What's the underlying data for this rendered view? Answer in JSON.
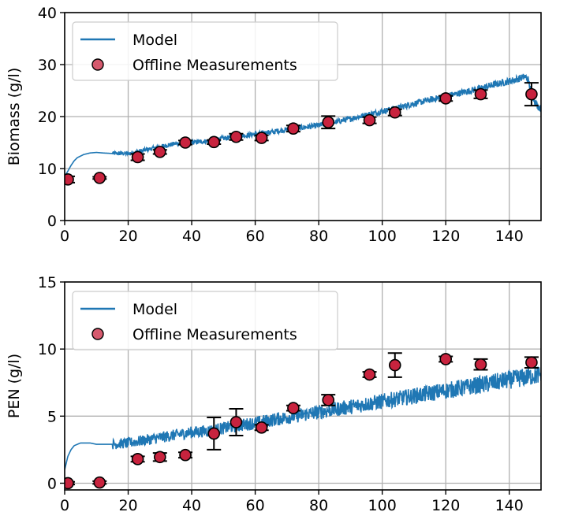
{
  "chart_data": [
    {
      "type": "line",
      "xlabel": "",
      "ylabel": "Biomass (g/l)",
      "xlim": [
        0,
        150
      ],
      "ylim": [
        0,
        40
      ],
      "xticks": [
        "0",
        "20",
        "40",
        "60",
        "80",
        "100",
        "120",
        "140"
      ],
      "yticks": [
        "0",
        "10",
        "20",
        "30",
        "40"
      ],
      "grid": true,
      "legend_position": "top-left",
      "legend": [
        "Model",
        "Offline Measurements"
      ],
      "series": [
        {
          "name": "Model",
          "kind": "line",
          "color": "#1f77b4",
          "x": [
            0,
            1,
            2,
            3,
            4,
            6,
            8,
            10,
            12,
            15,
            20,
            25,
            30,
            35,
            40,
            45,
            50,
            55,
            60,
            65,
            70,
            75,
            80,
            85,
            90,
            95,
            100,
            105,
            110,
            115,
            120,
            125,
            130,
            135,
            140,
            143,
            145,
            146,
            147,
            148,
            149,
            150
          ],
          "y": [
            8.5,
            9.5,
            10.6,
            11.5,
            12.1,
            12.7,
            13.0,
            13.1,
            13.0,
            12.9,
            12.9,
            13.5,
            14.2,
            14.8,
            15.0,
            15.3,
            15.8,
            16.2,
            16.6,
            17.0,
            17.5,
            17.9,
            18.3,
            18.9,
            19.6,
            20.3,
            21.0,
            21.7,
            22.5,
            23.2,
            23.9,
            24.6,
            25.3,
            26.1,
            26.8,
            27.3,
            27.7,
            27.0,
            24.5,
            23.0,
            22.0,
            21.5
          ],
          "noise": 0.35
        },
        {
          "name": "Offline Measurements",
          "kind": "scatter",
          "color": "#c8233e",
          "x": [
            1,
            11,
            23,
            30,
            38,
            47,
            54,
            62,
            72,
            83,
            96,
            104,
            120,
            131,
            147
          ],
          "y": [
            7.9,
            8.2,
            12.2,
            13.2,
            15.0,
            15.1,
            16.1,
            15.9,
            17.7,
            18.9,
            19.3,
            20.8,
            23.5,
            24.3,
            24.3
          ],
          "err": [
            0.6,
            0.2,
            0.6,
            0.4,
            0.4,
            0.4,
            0.6,
            0.5,
            0.6,
            1.2,
            0.6,
            0.6,
            0.5,
            0.8,
            2.2
          ]
        }
      ]
    },
    {
      "type": "line",
      "xlabel": "",
      "ylabel": "PEN (g/l)",
      "xlim": [
        0,
        150
      ],
      "ylim": [
        -0.5,
        15
      ],
      "xticks": [
        "0",
        "20",
        "40",
        "60",
        "80",
        "100",
        "120",
        "140"
      ],
      "yticks": [
        "0",
        "5",
        "10",
        "15"
      ],
      "grid": true,
      "legend_position": "top-left",
      "legend": [
        "Model",
        "Offline Measurements"
      ],
      "series": [
        {
          "name": "Model",
          "kind": "line",
          "color": "#1f77b4",
          "x": [
            0,
            1,
            2,
            3,
            5,
            8,
            10,
            15,
            20,
            25,
            30,
            35,
            40,
            45,
            50,
            55,
            60,
            65,
            70,
            75,
            80,
            85,
            90,
            95,
            100,
            105,
            110,
            115,
            120,
            125,
            130,
            135,
            140,
            145,
            150
          ],
          "y": [
            1.0,
            2.0,
            2.5,
            2.8,
            3.0,
            3.0,
            2.9,
            2.9,
            3.0,
            3.2,
            3.4,
            3.6,
            3.8,
            3.9,
            4.1,
            4.3,
            4.5,
            4.7,
            4.9,
            5.1,
            5.3,
            5.5,
            5.7,
            5.9,
            6.1,
            6.3,
            6.5,
            6.7,
            6.9,
            7.1,
            7.3,
            7.5,
            7.7,
            7.9,
            8.1
          ],
          "noise": 0.35
        },
        {
          "name": "Offline Measurements",
          "kind": "scatter",
          "color": "#c8233e",
          "x": [
            1,
            11,
            23,
            30,
            38,
            47,
            54,
            62,
            72,
            83,
            96,
            104,
            120,
            131,
            147
          ],
          "y": [
            0.0,
            0.05,
            1.8,
            1.95,
            2.1,
            3.7,
            4.55,
            4.15,
            5.6,
            6.2,
            8.1,
            8.8,
            9.25,
            8.85,
            9.0
          ],
          "err": [
            0.1,
            0.1,
            0.2,
            0.3,
            0.2,
            1.2,
            1.0,
            0.2,
            0.2,
            0.4,
            0.2,
            0.9,
            0.2,
            0.4,
            0.4
          ]
        }
      ]
    }
  ]
}
